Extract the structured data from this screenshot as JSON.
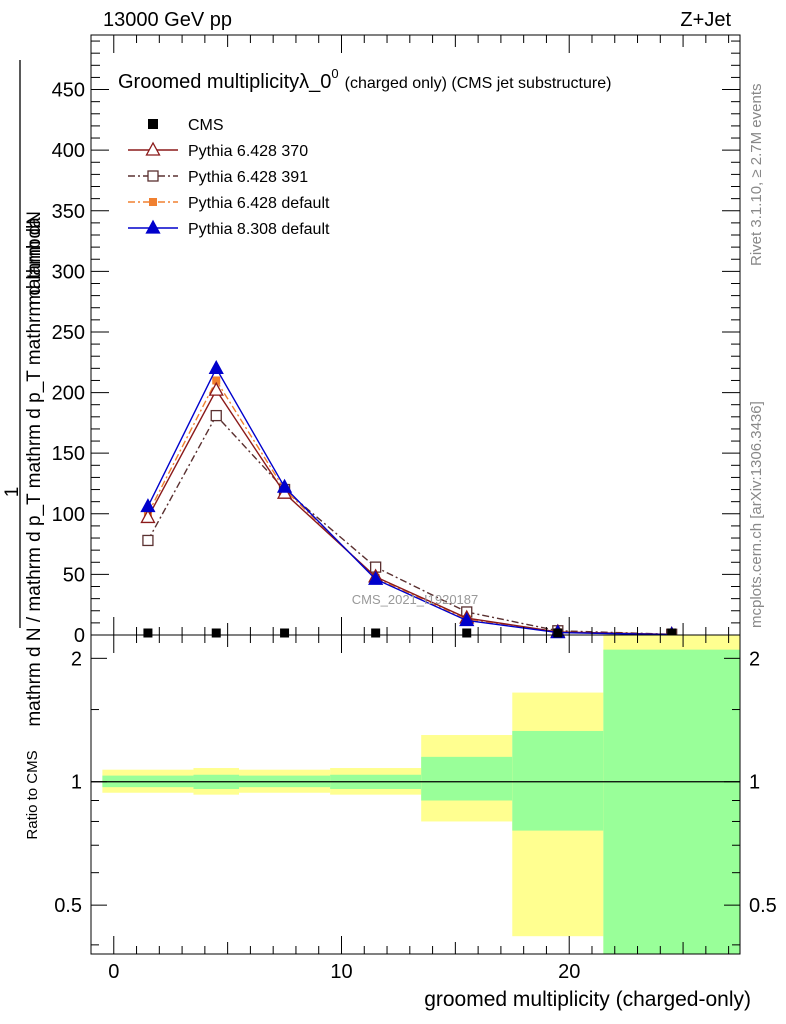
{
  "header": {
    "energy_label": "13000 GeV pp",
    "process_label": "Z+Jet"
  },
  "side_labels": {
    "rivet": "Rivet 3.1.10, ≥ 2.7M events",
    "mcplots": "mcplots.cern.ch [arXiv:1306.3436]"
  },
  "chart_data": [
    {
      "type": "line",
      "title": "Groomed multiplicityλ_0",
      "title_superscript": "0",
      "subtitle": "(charged only) (CMS jet substructure)",
      "ylabel_numerator": "mathrm dN",
      "ylabel_denominator": "mathrm d N / mathrm d p_T mathrm d p_T mathrm d lambda",
      "ylabel_prefix": "1",
      "watermark": "CMS_2021_I1920187",
      "xlim": [
        -1,
        27.5
      ],
      "ylim": [
        0,
        495
      ],
      "y_ticks": [
        0,
        50,
        100,
        150,
        200,
        250,
        300,
        350,
        400,
        450
      ],
      "y_tick_labels": [
        "0",
        "50",
        "100",
        "150",
        "200",
        "250",
        "300",
        "350",
        "400",
        "450"
      ],
      "grid": false,
      "legend_position": "top-left",
      "series": [
        {
          "name": "CMS",
          "marker": "square-filled",
          "color": "#000000",
          "line": "none",
          "x": [
            1.5,
            4.5,
            7.5,
            11.5,
            15.5,
            19.5,
            24.5
          ],
          "y": [
            0,
            0,
            0,
            0,
            0,
            0,
            0
          ]
        },
        {
          "name": "Pythia 6.428 370",
          "marker": "triangle-open",
          "color": "#8b1a1a",
          "line": "solid",
          "x": [
            1.5,
            4.5,
            7.5,
            11.5,
            15.5,
            19.5,
            24.5
          ],
          "y": [
            97,
            202,
            117,
            48,
            14,
            2.5,
            0.5
          ]
        },
        {
          "name": "Pythia 6.428 391",
          "marker": "square-open",
          "color": "#5a3030",
          "line": "dashdot",
          "x": [
            1.5,
            4.5,
            7.5,
            11.5,
            15.5,
            19.5,
            24.5
          ],
          "y": [
            78,
            181,
            120,
            56,
            19,
            3.5,
            0.6
          ]
        },
        {
          "name": "Pythia 6.428 default",
          "marker": "square-filled-small",
          "color": "#f08030",
          "line": "dashdot",
          "x": [
            1.5,
            4.5,
            7.5,
            11.5,
            15.5,
            19.5,
            24.5
          ],
          "y": [
            100,
            210,
            120,
            47,
            13,
            2.2,
            0.4
          ]
        },
        {
          "name": "Pythia 8.308 default",
          "marker": "triangle-filled",
          "color": "#0000cc",
          "line": "solid",
          "x": [
            1.5,
            4.5,
            7.5,
            11.5,
            15.5,
            19.5,
            24.5
          ],
          "y": [
            106,
            220,
            122,
            46,
            12,
            2,
            0.3
          ]
        }
      ]
    },
    {
      "type": "area",
      "ylabel": "Ratio to CMS",
      "xlabel": "groomed multiplicity (charged-only)",
      "xlim": [
        -1,
        27.5
      ],
      "ylim": [
        0.38,
        2.28
      ],
      "x_ticks": [
        0,
        10,
        20
      ],
      "x_tick_labels": [
        "0",
        "10",
        "20"
      ],
      "y_ticks": [
        0.5,
        1,
        2
      ],
      "y_tick_labels": [
        "0.5",
        "1",
        "2"
      ],
      "reference_line": 1,
      "band_colors": {
        "outer": "#ffff90",
        "inner": "#99ff99"
      },
      "bands": [
        {
          "x_low": -0.5,
          "x_high": 3.5,
          "outer": [
            0.94,
            1.07
          ],
          "inner": [
            0.97,
            1.035
          ]
        },
        {
          "x_low": 3.5,
          "x_high": 5.5,
          "outer": [
            0.93,
            1.08
          ],
          "inner": [
            0.96,
            1.04
          ]
        },
        {
          "x_low": 5.5,
          "x_high": 9.5,
          "outer": [
            0.94,
            1.07
          ],
          "inner": [
            0.97,
            1.035
          ]
        },
        {
          "x_low": 9.5,
          "x_high": 13.5,
          "outer": [
            0.93,
            1.08
          ],
          "inner": [
            0.96,
            1.04
          ]
        },
        {
          "x_low": 13.5,
          "x_high": 17.5,
          "outer": [
            0.8,
            1.3
          ],
          "inner": [
            0.9,
            1.15
          ]
        },
        {
          "x_low": 17.5,
          "x_high": 21.5,
          "outer": [
            0.42,
            1.65
          ],
          "inner": [
            0.76,
            1.33
          ]
        },
        {
          "x_low": 21.5,
          "x_high": 27.5,
          "outer": [
            0.38,
            2.28
          ],
          "inner": [
            0.38,
            2.1
          ]
        }
      ]
    }
  ]
}
